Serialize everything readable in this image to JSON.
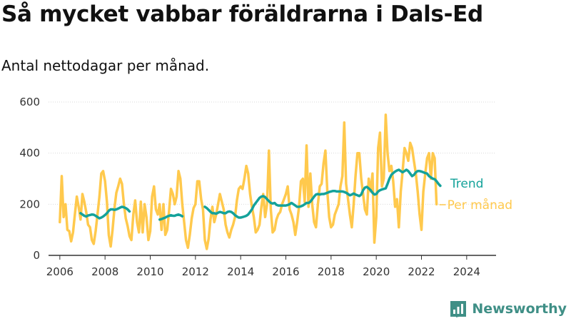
{
  "title": "Så mycket vabbar föräldrarna i Dals-Ed",
  "subtitle": "Antal nettodagar per månad.",
  "brand": {
    "name": "Newsworthy",
    "icon": "newsworthy-logo-icon"
  },
  "colors": {
    "monthly": "#ffc94d",
    "trend": "#14a29a",
    "axis": "#333333",
    "grid": "#d9d9d9",
    "brand": "#3f8f86"
  },
  "chart_data": {
    "type": "line",
    "title": "Så mycket vabbar föräldrarna i Dals-Ed",
    "subtitle": "Antal nettodagar per månad.",
    "xlabel": "",
    "ylabel": "",
    "xlim": [
      2005.5,
      2025.3
    ],
    "ylim": [
      0,
      600
    ],
    "x_ticks": [
      2006,
      2008,
      2010,
      2012,
      2014,
      2016,
      2018,
      2020,
      2022,
      2024
    ],
    "y_ticks": [
      0,
      200,
      400,
      600
    ],
    "grid": true,
    "legend": "direct-labels-right",
    "series": [
      {
        "name": "Trend",
        "label_position": "top",
        "segments": [
          {
            "start": 2006.917,
            "values": [
              165,
              160,
              155,
              152,
              156,
              158,
              160,
              159,
              155,
              150,
              145,
              148,
              152,
              158,
              165,
              175,
              180,
              180,
              178,
              180,
              183,
              187,
              190,
              188,
              185,
              180,
              172
            ]
          },
          {
            "start": 2010.417,
            "values": [
              140,
              142,
              145,
              148,
              152,
              155,
              157,
              155,
              155,
              158,
              160,
              157,
              153
            ]
          },
          {
            "start": 2012.417,
            "values": [
              190,
              185,
              178,
              170,
              165,
              165,
              163,
              167,
              170,
              168,
              165,
              165,
              170,
              172,
              170,
              165,
              157,
              152,
              148,
              148,
              150,
              152,
              155,
              160,
              170,
              180,
              195,
              205,
              215,
              225,
              230,
              232,
              228,
              220,
              212,
              205,
              203,
              205,
              198,
              195,
              195,
              195,
              195,
              195,
              197,
              200,
              205,
              200,
              195,
              190,
              190,
              192,
              195,
              200,
              205,
              205,
              210,
              220,
              230,
              238,
              240,
              238,
              240,
              240,
              242,
              245,
              248,
              250,
              252,
              252,
              250,
              250,
              250,
              250,
              248,
              245,
              240,
              235,
              238,
              242,
              238,
              235,
              232,
              238,
              255,
              265,
              268,
              262,
              255,
              245,
              238,
              240,
              250,
              255,
              258,
              260,
              262,
              280,
              300,
              315,
              322,
              328,
              332,
              335,
              330,
              325,
              330,
              335,
              330,
              320,
              310,
              315,
              325,
              330,
              330,
              328,
              325,
              322,
              320,
              310,
              305,
              300,
              298,
              290,
              280,
              272
            ]
          }
        ]
      },
      {
        "name": "Per månad",
        "label_position": "bottom",
        "start": 2006.0,
        "values": [
          130,
          310,
          150,
          200,
          100,
          95,
          55,
          90,
          160,
          230,
          190,
          140,
          240,
          210,
          170,
          120,
          110,
          60,
          45,
          95,
          160,
          230,
          320,
          330,
          290,
          210,
          80,
          35,
          100,
          185,
          245,
          270,
          300,
          280,
          200,
          145,
          115,
          75,
          60,
          160,
          215,
          130,
          90,
          210,
          90,
          200,
          150,
          60,
          95,
          230,
          270,
          180,
          160,
          200,
          100,
          200,
          80,
          100,
          175,
          260,
          240,
          200,
          230,
          330,
          300,
          200,
          130,
          60,
          30,
          80,
          145,
          185,
          200,
          290,
          290,
          220,
          180,
          60,
          25,
          65,
          140,
          190,
          130,
          160,
          200,
          240,
          210,
          180,
          120,
          90,
          70,
          100,
          120,
          150,
          215,
          260,
          270,
          260,
          300,
          350,
          320,
          240,
          190,
          150,
          90,
          100,
          120,
          190,
          240,
          150,
          200,
          410,
          180,
          90,
          100,
          140,
          160,
          170,
          200,
          220,
          240,
          270,
          180,
          160,
          130,
          80,
          130,
          190,
          290,
          300,
          210,
          430,
          190,
          320,
          200,
          130,
          110,
          200,
          270,
          280,
          360,
          410,
          250,
          150,
          110,
          120,
          160,
          180,
          200,
          270,
          310,
          520,
          280,
          220,
          160,
          110,
          200,
          310,
          400,
          400,
          300,
          240,
          180,
          160,
          300,
          250,
          320,
          50,
          150,
          420,
          480,
          270,
          300,
          550,
          400,
          330,
          350,
          290,
          190,
          220,
          110,
          250,
          330,
          420,
          400,
          370,
          440,
          420,
          370,
          320,
          250,
          160,
          100,
          250,
          320,
          380,
          400,
          300,
          400,
          380,
          200
        ]
      }
    ]
  }
}
